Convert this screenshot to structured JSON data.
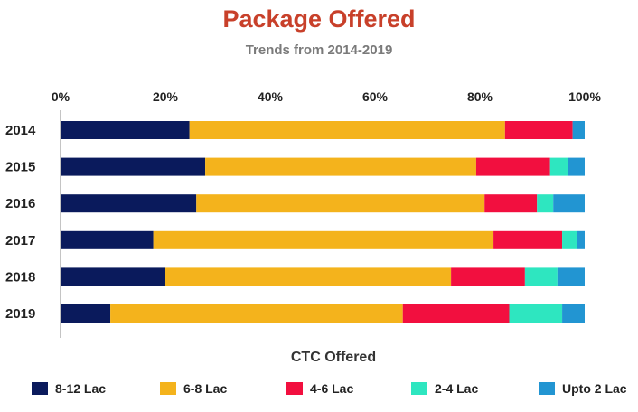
{
  "chart_data": {
    "type": "bar",
    "orientation": "horizontal",
    "stacked": "100%",
    "title": "Package Offered",
    "subtitle": "Trends from 2014-2019",
    "xlabel": "CTC Offered",
    "ylabel": "",
    "xlim": [
      0,
      100
    ],
    "x_ticks": [
      "0%",
      "20%",
      "40%",
      "60%",
      "80%",
      "100%"
    ],
    "x_axis_position": "top",
    "grid": false,
    "legend_position": "bottom",
    "categories": [
      "2014",
      "2015",
      "2016",
      "2017",
      "2018",
      "2019"
    ],
    "series": [
      {
        "name": "8-12 Lac",
        "color": "#0a1a5c",
        "values": [
          24.6,
          27.6,
          25.9,
          17.7,
          20.0,
          9.5
        ]
      },
      {
        "name": "6-8 Lac",
        "color": "#f4b31c",
        "values": [
          60.2,
          51.7,
          55.0,
          64.9,
          54.5,
          55.8
        ]
      },
      {
        "name": "4-6 Lac",
        "color": "#f20f3f",
        "values": [
          12.9,
          14.1,
          10.0,
          13.1,
          14.1,
          20.3
        ]
      },
      {
        "name": "2-4 Lac",
        "color": "#2ee6c0",
        "values": [
          0.0,
          3.4,
          3.1,
          2.8,
          6.2,
          10.1
        ]
      },
      {
        "name": "Upto 2 Lac",
        "color": "#2295d2",
        "values": [
          2.3,
          3.2,
          6.0,
          1.5,
          5.2,
          4.3
        ]
      }
    ]
  }
}
